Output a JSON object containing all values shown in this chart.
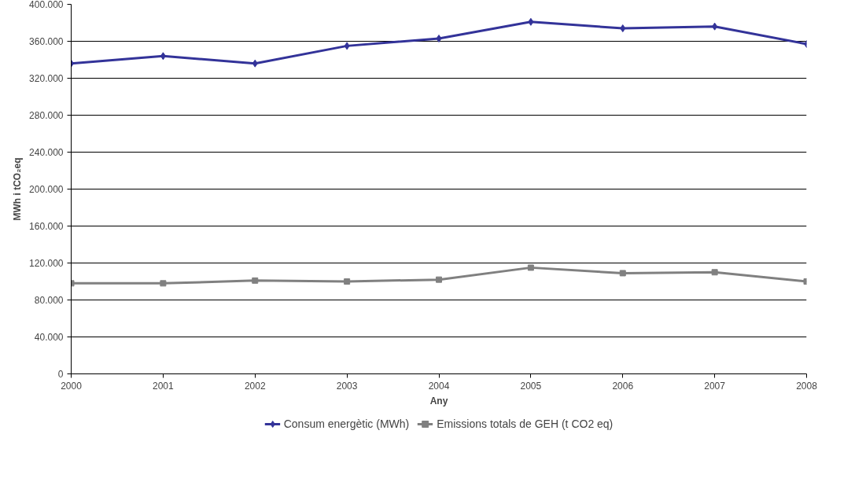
{
  "chart_data": {
    "type": "line",
    "xlabel": "Any",
    "ylabel": "MWh i tCO₂eq",
    "x": [
      2000,
      2001,
      2002,
      2003,
      2004,
      2005,
      2006,
      2007,
      2008
    ],
    "series": [
      {
        "name": "Consum energètic (MWh)",
        "color": "#333399",
        "marker": "diamond",
        "values": [
          336000,
          344000,
          336000,
          355000,
          363000,
          381000,
          374000,
          376000,
          357000
        ]
      },
      {
        "name": "Emissions totals de GEH (t CO2 eq)",
        "color": "#808080",
        "marker": "square",
        "values": [
          98000,
          98000,
          101000,
          100000,
          102000,
          115000,
          109000,
          110000,
          100000
        ]
      }
    ],
    "xlim": [
      2000,
      2008
    ],
    "xticks": [
      2000,
      2001,
      2002,
      2003,
      2004,
      2005,
      2006,
      2007,
      2008
    ],
    "ylim": [
      0,
      400000
    ],
    "yticks": [
      0,
      {
        "value": 40000,
        "label": "40.000"
      },
      {
        "value": 80000,
        "label": "80.000"
      },
      {
        "value": 120000,
        "label": "120.000"
      },
      {
        "value": 160000,
        "label": "160.000"
      },
      {
        "value": 200000,
        "label": "200.000"
      },
      {
        "value": 240000,
        "label": "240.000"
      },
      {
        "value": 280000,
        "label": "280.000"
      },
      {
        "value": 320000,
        "label": "320.000"
      },
      {
        "value": 360000,
        "label": "360.000"
      },
      {
        "value": 400000,
        "label": "400.000"
      }
    ],
    "grid": "y",
    "legend": "bottom",
    "line_style": "solid"
  }
}
